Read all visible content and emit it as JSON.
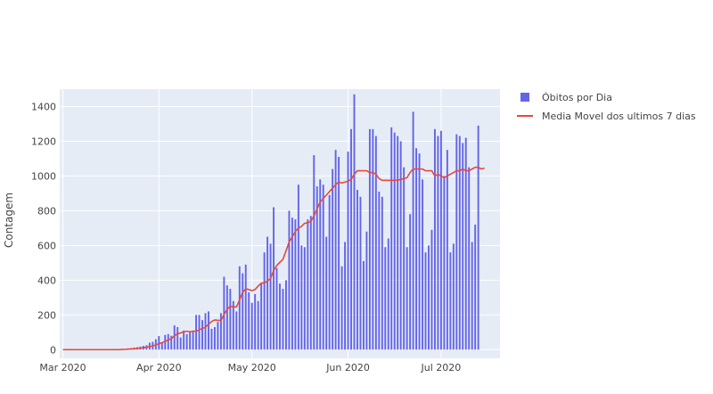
{
  "chart_data": {
    "type": "bar+line",
    "title": "",
    "xlabel": "",
    "ylabel": "Contagem",
    "ylim": [
      -50,
      1500
    ],
    "xlim": [
      "2020-02-29",
      "2020-07-20"
    ],
    "yticks": [
      0,
      200,
      400,
      600,
      800,
      1000,
      1200,
      1400
    ],
    "xticks": [
      {
        "date": "2020-03-01",
        "label": "Mar 2020"
      },
      {
        "date": "2020-04-01",
        "label": "Apr 2020"
      },
      {
        "date": "2020-05-01",
        "label": "May 2020"
      },
      {
        "date": "2020-06-01",
        "label": "Jun 2020"
      },
      {
        "date": "2020-07-01",
        "label": "Jul 2020"
      }
    ],
    "grid": true,
    "legend_position": "top-right",
    "colors": {
      "bars": "#6464e8",
      "line": "#e8483a",
      "plot_bg": "#e5ecf6"
    },
    "start_date": "2020-03-01",
    "series": [
      {
        "name": "Óbitos por Dia",
        "type": "bar",
        "values": [
          0,
          0,
          0,
          0,
          0,
          0,
          0,
          0,
          0,
          0,
          0,
          0,
          0,
          0,
          0,
          0,
          1,
          0,
          2,
          3,
          4,
          7,
          9,
          12,
          14,
          18,
          22,
          25,
          40,
          45,
          60,
          78,
          40,
          85,
          90,
          80,
          140,
          130,
          70,
          110,
          90,
          100,
          110,
          200,
          200,
          170,
          210,
          220,
          120,
          130,
          160,
          210,
          420,
          370,
          350,
          280,
          220,
          480,
          440,
          490,
          330,
          270,
          320,
          280,
          380,
          560,
          650,
          610,
          820,
          470,
          380,
          350,
          400,
          800,
          760,
          750,
          950,
          600,
          590,
          750,
          770,
          1120,
          940,
          980,
          950,
          650,
          890,
          1040,
          1150,
          1110,
          480,
          620,
          1140,
          1270,
          1470,
          920,
          880,
          510,
          680,
          1270,
          1270,
          1230,
          910,
          880,
          590,
          640,
          1280,
          1250,
          1230,
          1200,
          1050,
          590,
          780,
          1370,
          1160,
          1130,
          980,
          560,
          600,
          690,
          1270,
          1230,
          1260,
          1000,
          1150,
          560,
          610,
          1240,
          1230,
          1190,
          1220,
          1050,
          620,
          720,
          1290
        ]
      },
      {
        "name": "Media Movel dos ultimos 7 dias",
        "type": "line",
        "values": [
          0,
          0,
          0,
          0,
          0,
          0,
          0,
          0,
          0,
          0,
          0,
          0,
          0,
          0,
          0,
          0,
          0,
          0,
          0,
          1,
          2,
          3,
          4,
          5,
          7,
          9,
          11,
          14,
          18,
          21,
          27,
          35,
          40,
          48,
          56,
          63,
          80,
          92,
          96,
          104,
          106,
          103,
          106,
          106,
          114,
          121,
          130,
          146,
          162,
          171,
          169,
          168,
          202,
          232,
          250,
          246,
          246,
          286,
          330,
          350,
          346,
          340,
          346,
          366,
          383,
          384,
          395,
          410,
          455,
          485,
          503,
          520,
          570,
          620,
          650,
          680,
          700,
          710,
          728,
          730,
          740,
          770,
          810,
          850,
          870,
          890,
          910,
          930,
          950,
          965,
          960,
          965,
          970,
          980,
          1010,
          1030,
          1030,
          1030,
          1030,
          1020,
          1020,
          1010,
          985,
          975,
          975,
          975,
          975,
          975,
          975,
          980,
          985,
          990,
          1020,
          1040,
          1040,
          1040,
          1040,
          1030,
          1030,
          1030,
          1000,
          1010,
          1000,
          990,
          1000,
          1010,
          1020,
          1030,
          1030,
          1040,
          1030,
          1030,
          1040,
          1050,
          1050,
          1040,
          1045
        ]
      }
    ]
  }
}
